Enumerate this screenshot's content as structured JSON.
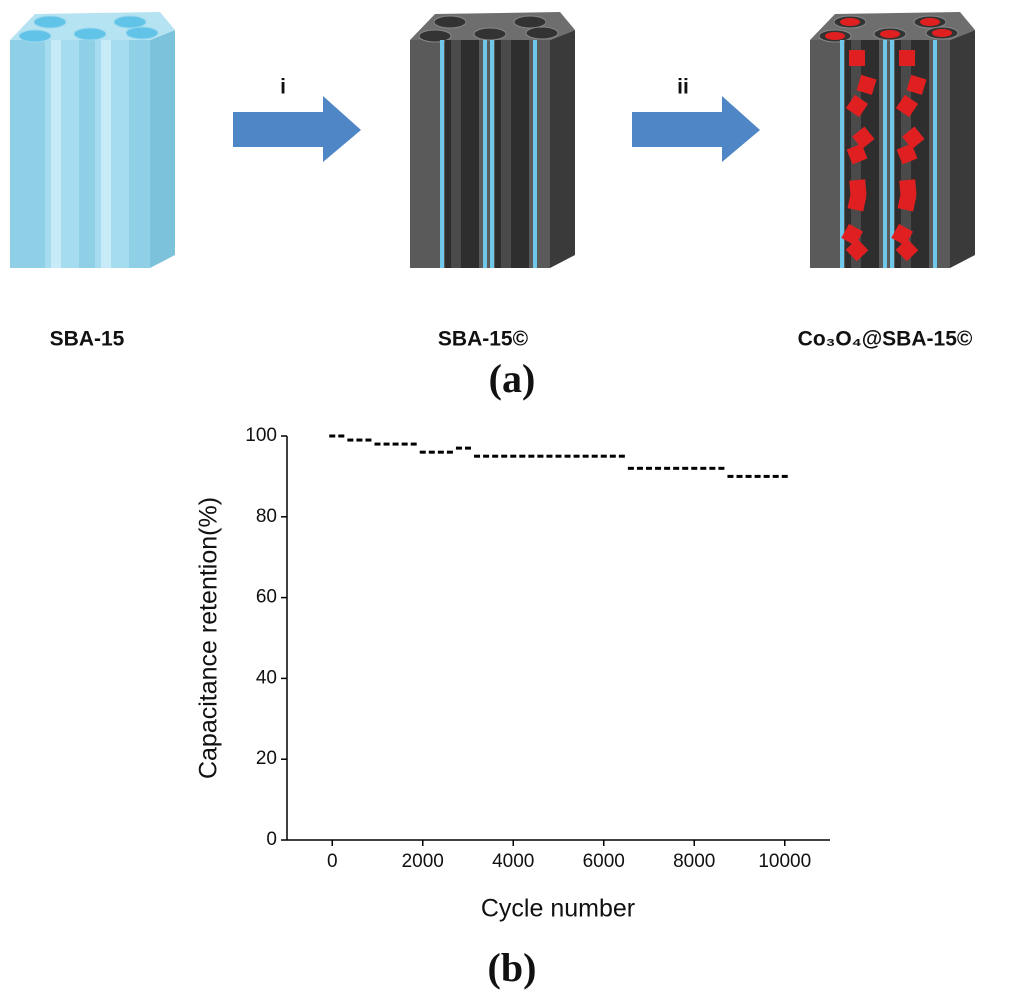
{
  "diagram": {
    "labels": [
      "SBA-15",
      "SBA-15©",
      "Co₃O₄@SBA-15©"
    ],
    "steps": [
      "i",
      "ii"
    ],
    "panel": "(a)"
  },
  "chart_data": {
    "type": "scatter",
    "panel": "(b)",
    "xlabel": "Cycle number",
    "ylabel": "Capacitance retention(%)",
    "x": [
      0,
      200,
      400,
      600,
      800,
      1000,
      1200,
      1400,
      1600,
      1800,
      2000,
      2200,
      2400,
      2600,
      2800,
      3000,
      3200,
      3400,
      3600,
      3800,
      4000,
      4200,
      4400,
      4600,
      4800,
      5000,
      5200,
      5400,
      5600,
      5800,
      6000,
      6200,
      6400,
      6600,
      6800,
      7000,
      7200,
      7400,
      7600,
      7800,
      8000,
      8200,
      8400,
      8600,
      8800,
      9000,
      9200,
      9400,
      9600,
      9800,
      10000
    ],
    "values": [
      100,
      100,
      99,
      99,
      99,
      98,
      98,
      98,
      98,
      98,
      96,
      96,
      96,
      96,
      97,
      97,
      95,
      95,
      95,
      95,
      95,
      95,
      95,
      95,
      95,
      95,
      95,
      95,
      95,
      95,
      95,
      95,
      95,
      92,
      92,
      92,
      92,
      92,
      92,
      92,
      92,
      92,
      92,
      92,
      90,
      90,
      90,
      90,
      90,
      90,
      90
    ],
    "color": "#000000",
    "xlim": [
      -1000,
      11000
    ],
    "xticks": [
      0,
      2000,
      4000,
      6000,
      8000,
      10000
    ],
    "ylim": [
      0,
      100
    ],
    "yticks": [
      0,
      20,
      40,
      60,
      80,
      100
    ]
  }
}
